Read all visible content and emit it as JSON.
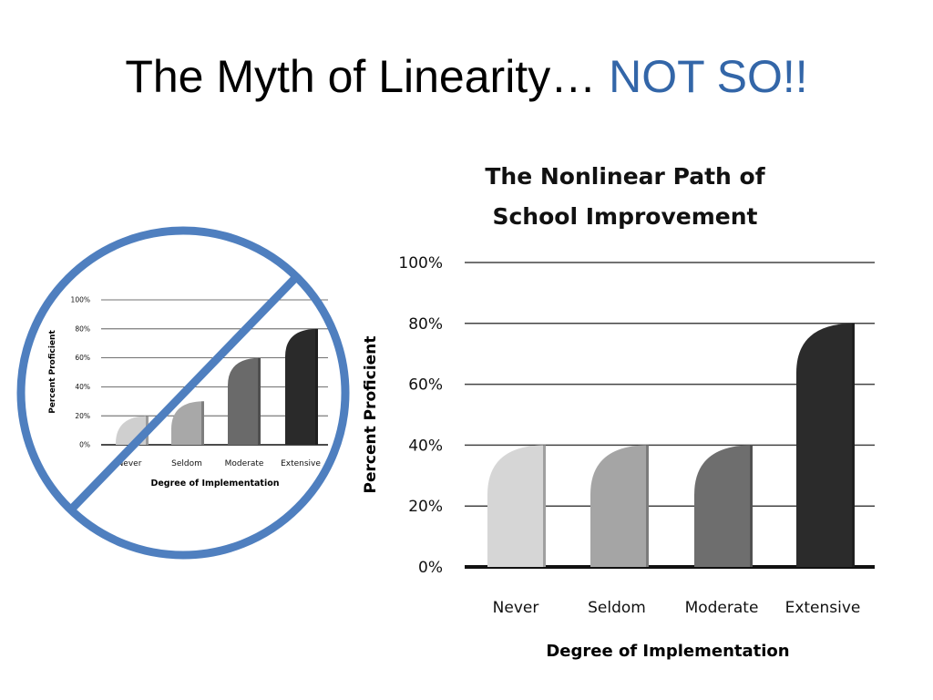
{
  "slide": {
    "title_main": "The Myth of Linearity…",
    "title_accent": "NOT SO!!",
    "accent_color": "#3366a8"
  },
  "chart_data": [
    {
      "type": "bar",
      "title": "",
      "categories": [
        "Never",
        "Seldom",
        "Moderate",
        "Extensive"
      ],
      "values": [
        20,
        30,
        60,
        80
      ],
      "yticks": [
        "0%",
        "20%",
        "40%",
        "60%",
        "80%",
        "100%"
      ],
      "xlabel": "Degree of Implementation",
      "ylabel": "Percent Proficient",
      "ylim": [
        0,
        100
      ],
      "grid": true,
      "bar_colors": [
        "#cfcfcf",
        "#a8a8a8",
        "#6a6a6a",
        "#2a2a2a"
      ],
      "overlay": "prohibition-sign",
      "overlay_color": "#4f7fbf"
    },
    {
      "type": "bar",
      "title": "The Nonlinear Path of\nSchool Improvement",
      "title_lines": [
        "The Nonlinear Path of",
        "School Improvement"
      ],
      "categories": [
        "Never",
        "Seldom",
        "Moderate",
        "Extensive"
      ],
      "values": [
        40,
        40,
        40,
        80
      ],
      "yticks": [
        "0%",
        "20%",
        "40%",
        "60%",
        "80%",
        "100%"
      ],
      "xlabel": "Degree of Implementation",
      "ylabel": "Percent Proficient",
      "ylim": [
        0,
        100
      ],
      "grid": true,
      "bar_colors": [
        "#d6d6d6",
        "#a5a5a5",
        "#6e6e6e",
        "#2b2b2b"
      ]
    }
  ]
}
